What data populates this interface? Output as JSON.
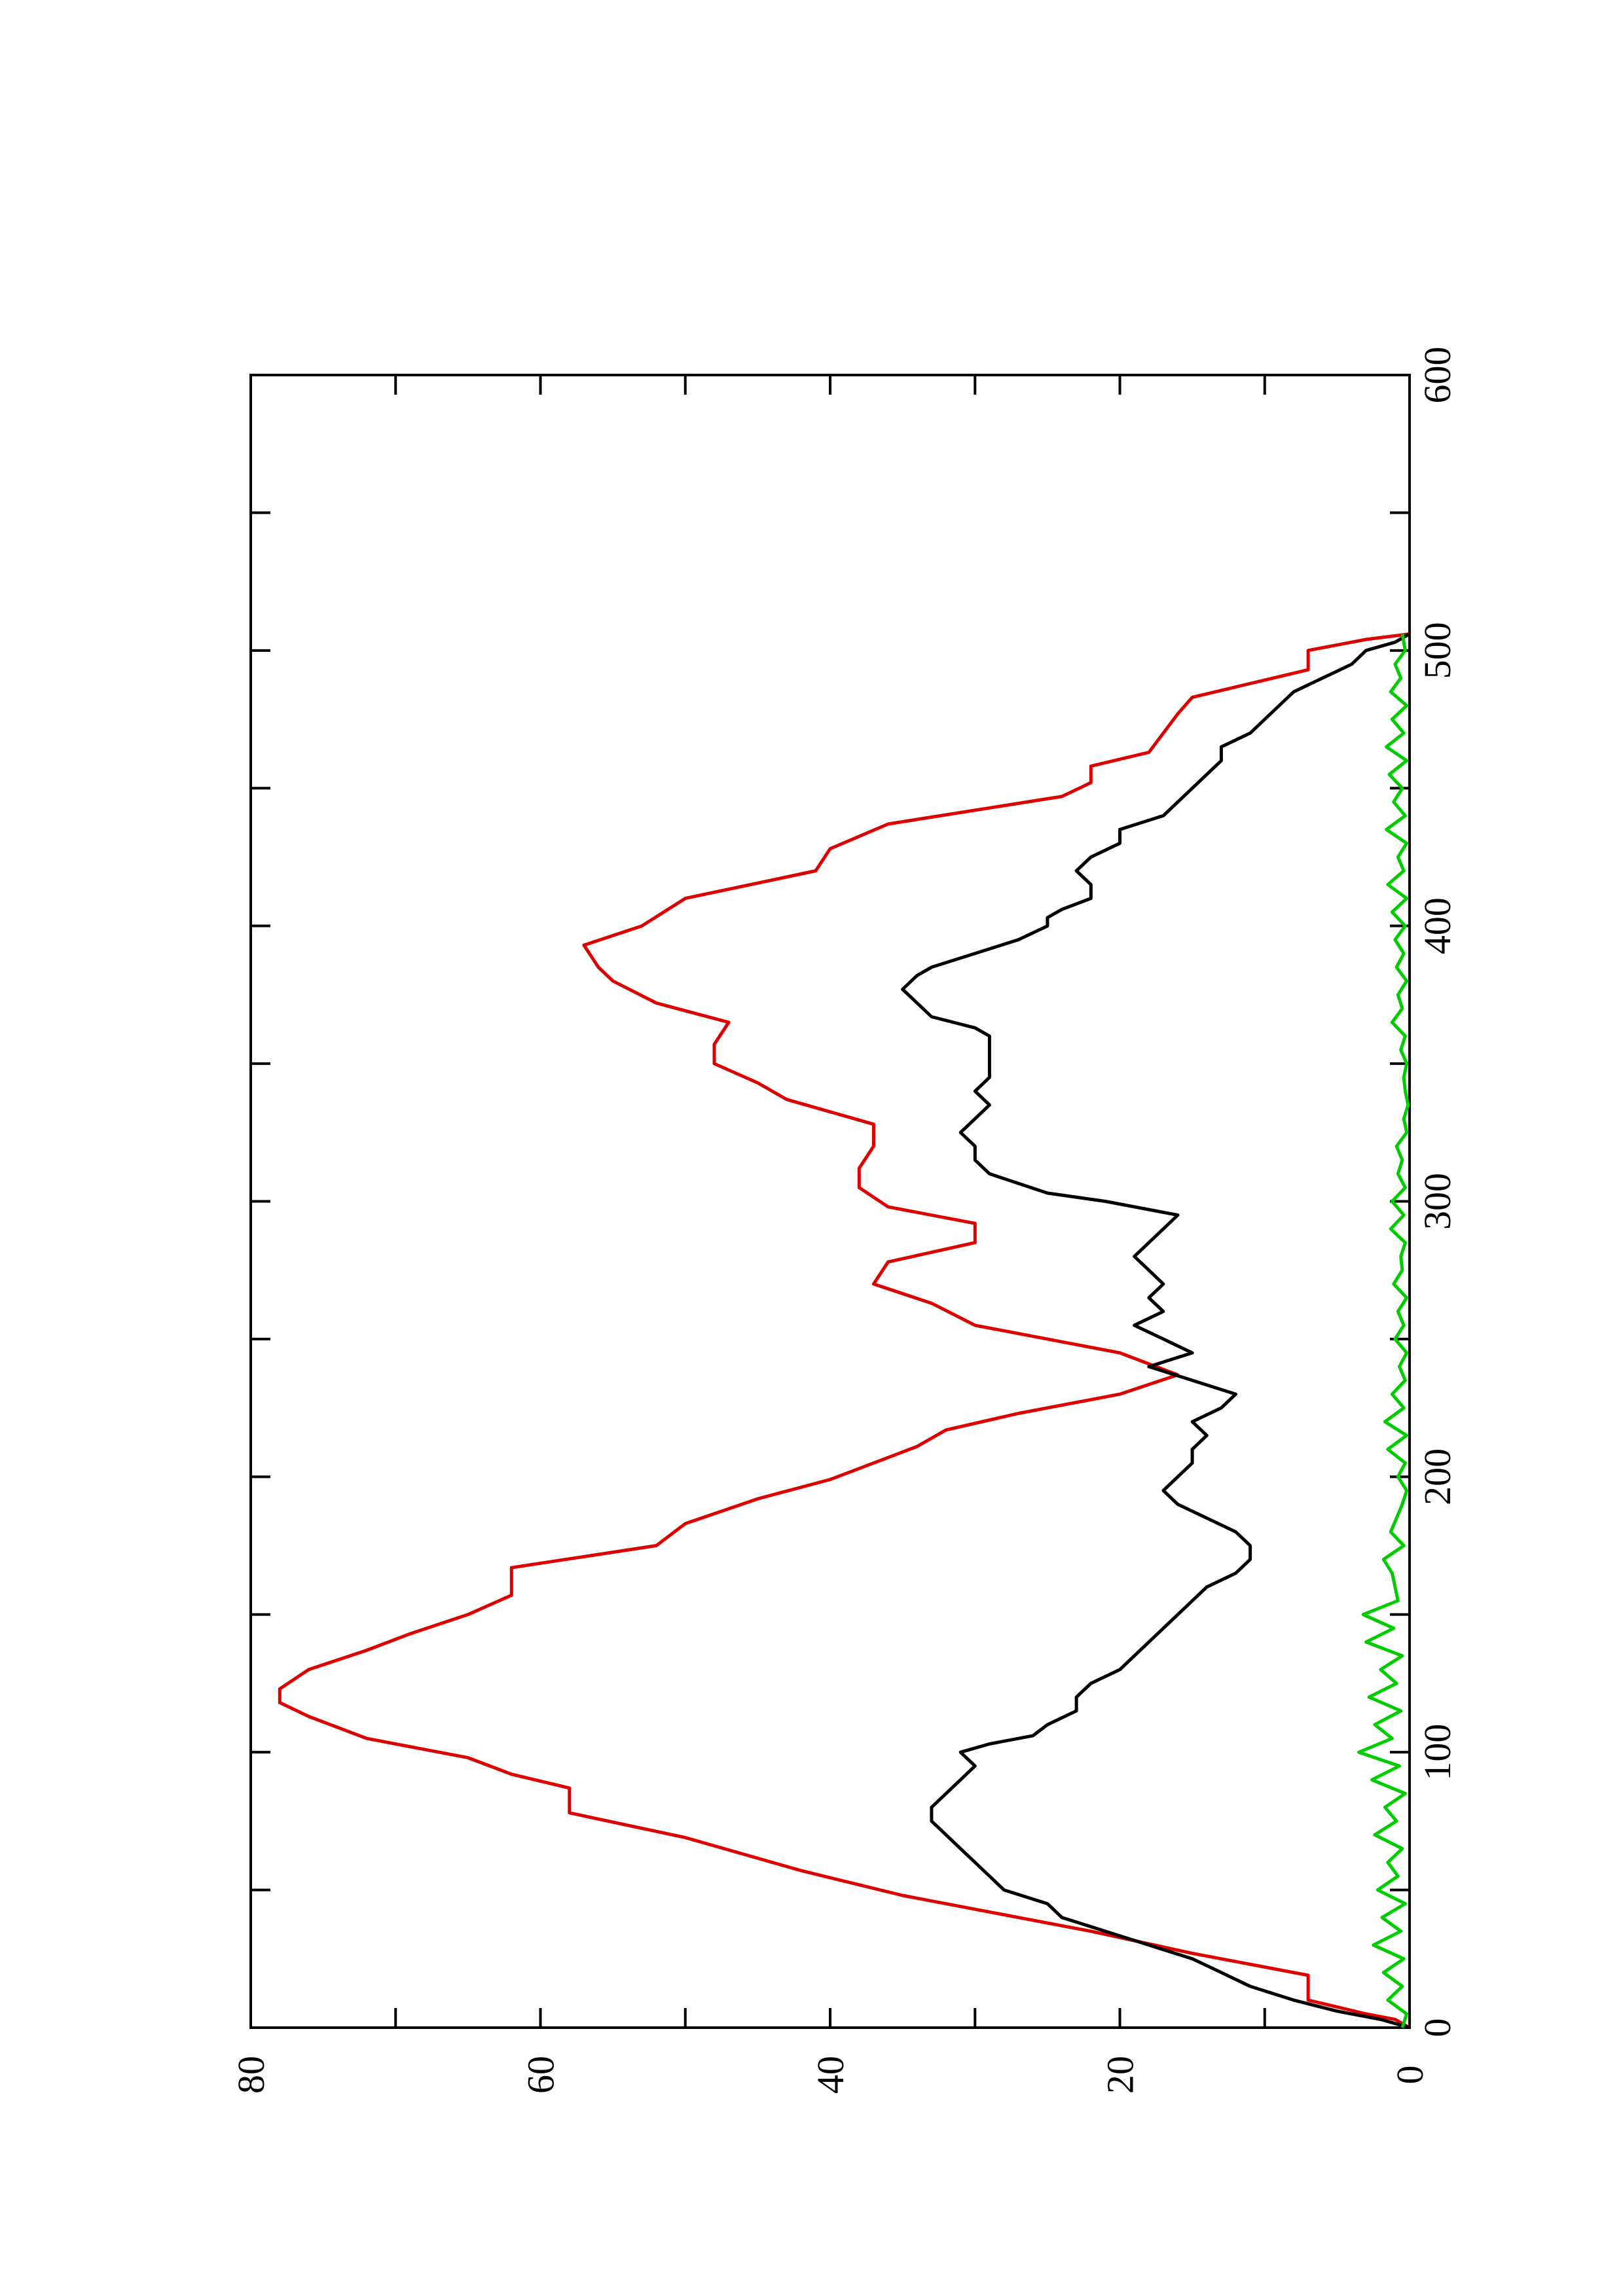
{
  "chart_data": {
    "type": "line",
    "orientation": "rotated-90-ccw",
    "title": "",
    "xlabel": "",
    "ylabel": "",
    "xlim": [
      0,
      600
    ],
    "ylim": [
      0,
      80
    ],
    "x_ticks": [
      "0",
      "100",
      "200",
      "300",
      "400",
      "500",
      "600"
    ],
    "y_ticks": [
      "0",
      "20",
      "40",
      "60",
      "80"
    ],
    "grid": false,
    "legend": "none",
    "colors": {
      "red": "#dd0000",
      "black": "#000000",
      "green": "#00cc00",
      "axis": "#000000"
    },
    "series": [
      {
        "color": "#dd0000",
        "x": [
          0,
          3,
          5,
          10,
          19,
          27,
          35,
          40,
          48,
          57,
          69,
          78,
          87,
          92,
          98,
          105,
          113,
          118,
          123,
          130,
          137,
          143,
          150,
          157,
          167,
          175,
          183,
          192,
          199,
          207,
          211,
          217,
          223,
          230,
          237,
          245,
          255,
          263,
          270,
          278,
          285,
          292,
          298,
          305,
          312,
          320,
          328,
          337,
          343,
          350,
          357,
          365,
          372,
          380,
          385,
          393,
          400,
          410,
          420,
          428,
          437,
          447,
          452,
          458,
          463,
          470,
          477,
          483,
          493,
          500,
          504,
          506
        ],
        "y": [
          0,
          1,
          3,
          7,
          7,
          15,
          22,
          27,
          35,
          42,
          50,
          58,
          58,
          62,
          65,
          72,
          76,
          78,
          78,
          76,
          72,
          69,
          65,
          62,
          62,
          52,
          50,
          45,
          40,
          36,
          34,
          32,
          27,
          20,
          16,
          20,
          30,
          33,
          37,
          36,
          30,
          30,
          36,
          38,
          38,
          37,
          37,
          43,
          45,
          48,
          48,
          47,
          52,
          55,
          56,
          57,
          53,
          50,
          41,
          40,
          36,
          24,
          22,
          22,
          18,
          17,
          16,
          15,
          7,
          7,
          3,
          0
        ]
      },
      {
        "color": "#000000",
        "x": [
          0,
          3,
          6,
          10,
          15,
          20,
          25,
          30,
          35,
          40,
          45,
          50,
          55,
          60,
          65,
          70,
          75,
          80,
          85,
          90,
          95,
          100,
          103,
          106,
          110,
          115,
          120,
          125,
          130,
          140,
          150,
          160,
          165,
          170,
          175,
          180,
          185,
          190,
          195,
          200,
          205,
          210,
          215,
          220,
          225,
          230,
          235,
          240,
          245,
          250,
          255,
          260,
          265,
          270,
          275,
          280,
          285,
          290,
          295,
          300,
          303,
          310,
          315,
          320,
          325,
          330,
          335,
          340,
          345,
          350,
          355,
          360,
          363,
          367,
          372,
          377,
          382,
          385,
          390,
          395,
          400,
          403,
          406,
          410,
          415,
          420,
          425,
          430,
          435,
          440,
          445,
          450,
          455,
          460,
          465,
          470,
          475,
          480,
          485,
          490,
          495,
          500,
          503,
          506
        ],
        "y": [
          0,
          2,
          5,
          8,
          11,
          13,
          15,
          18,
          21,
          24,
          25,
          28,
          29,
          30,
          31,
          32,
          33,
          33,
          32,
          31,
          30,
          31,
          29,
          26,
          25,
          23,
          23,
          22,
          20,
          18,
          16,
          14,
          12,
          11,
          11,
          12,
          14,
          16,
          17,
          16,
          15,
          15,
          14,
          15,
          13,
          12,
          15,
          18,
          15,
          17,
          19,
          17,
          18,
          17,
          18,
          19,
          18,
          17,
          16,
          21,
          25,
          29,
          30,
          30,
          31,
          30,
          29,
          30,
          29,
          29,
          29,
          29,
          30,
          33,
          34,
          35,
          34,
          33,
          30,
          27,
          25,
          25,
          24,
          22,
          22,
          23,
          22,
          20,
          20,
          17,
          16,
          15,
          14,
          13,
          13,
          11,
          10,
          9,
          8,
          6,
          4,
          3,
          1,
          0
        ]
      },
      {
        "color": "#00cc00",
        "x": [
          0,
          5,
          10,
          15,
          20,
          25,
          30,
          35,
          40,
          45,
          50,
          55,
          60,
          65,
          70,
          75,
          80,
          85,
          90,
          95,
          100,
          105,
          110,
          115,
          120,
          125,
          130,
          135,
          140,
          145,
          150,
          155,
          160,
          165,
          170,
          175,
          180,
          185,
          190,
          195,
          200,
          205,
          210,
          215,
          220,
          225,
          230,
          235,
          240,
          245,
          250,
          255,
          260,
          265,
          270,
          275,
          280,
          285,
          290,
          295,
          300,
          305,
          310,
          315,
          320,
          325,
          330,
          335,
          340,
          345,
          350,
          355,
          360,
          365,
          370,
          375,
          380,
          385,
          390,
          395,
          400,
          405,
          410,
          415,
          420,
          425,
          430,
          435,
          440,
          445,
          450,
          455,
          460,
          465,
          470,
          475,
          480,
          485,
          490,
          495,
          500,
          506
        ],
        "y": [
          0.5,
          0.2,
          1.5,
          0.5,
          1.8,
          0.4,
          2.5,
          0.6,
          1.9,
          0.3,
          2.2,
          0.8,
          1.5,
          0.5,
          2.4,
          0.9,
          1.7,
          0.3,
          2.6,
          0.7,
          3.5,
          1.2,
          2.4,
          0.6,
          2.8,
          0.9,
          2.0,
          0.5,
          3.0,
          1.1,
          3.2,
          0.8,
          1.0,
          1.2,
          1.8,
          0.4,
          1.3,
          0.9,
          0.5,
          0.2,
          0.8,
          0.3,
          1.5,
          0.2,
          1.7,
          0.4,
          1.2,
          0.3,
          0.7,
          0.2,
          1.0,
          0.4,
          0.8,
          0.2,
          1.1,
          0.5,
          0.6,
          0.3,
          1.3,
          0.4,
          1.2,
          0.3,
          0.8,
          0.5,
          0.9,
          0.2,
          0.4,
          0.1,
          0.3,
          0.4,
          0.2,
          0.6,
          0.3,
          1.2,
          0.5,
          0.8,
          0.2,
          0.9,
          0.4,
          1.0,
          0.3,
          1.2,
          0.2,
          1.5,
          0.4,
          0.8,
          0.2,
          1.6,
          0.3,
          1.1,
          0.5,
          1.4,
          0.2,
          1.6,
          0.4,
          1.2,
          0.2,
          1.3,
          0.6,
          1.0,
          0.3,
          0.5
        ]
      }
    ]
  }
}
